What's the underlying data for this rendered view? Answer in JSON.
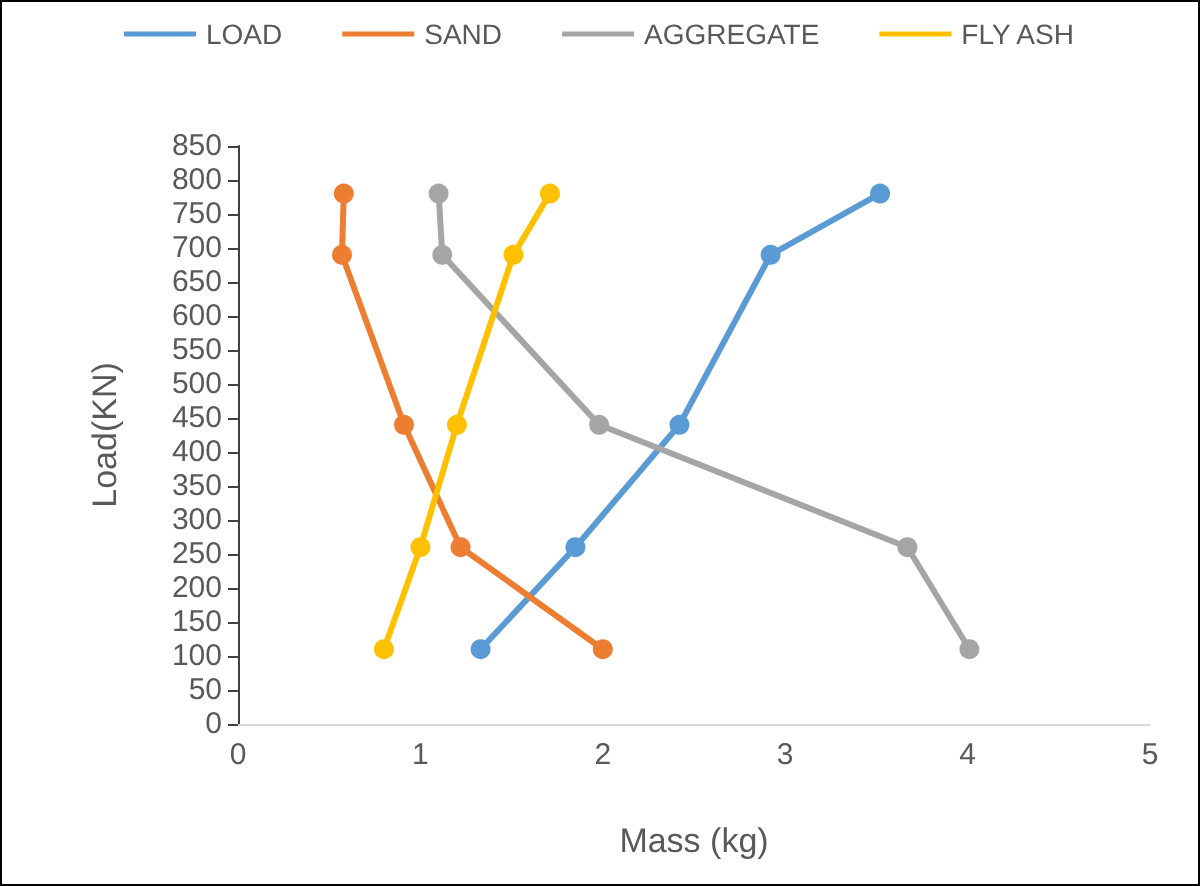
{
  "chart_data": {
    "type": "line",
    "xlabel": "Mass (kg)",
    "ylabel": "Load(KN)",
    "xlim": [
      0,
      5
    ],
    "xticks": [
      0,
      1,
      2,
      3,
      4,
      5
    ],
    "ylim": [
      0,
      850
    ],
    "yticks": [
      0,
      50,
      100,
      150,
      200,
      250,
      300,
      350,
      400,
      450,
      500,
      550,
      600,
      650,
      700,
      750,
      800,
      850
    ],
    "grid": false,
    "legend": "top",
    "marker": "circle",
    "line_style": "solid",
    "series": [
      {
        "name": "LOAD",
        "color": "#5b9bd5",
        "x": [
          1.33,
          1.85,
          2.42,
          2.92,
          3.52
        ],
        "values": [
          110,
          260,
          440,
          690,
          780
        ]
      },
      {
        "name": "SAND",
        "color": "#ed7d31",
        "x": [
          2.0,
          1.22,
          0.91,
          0.57,
          0.58
        ],
        "values": [
          110,
          260,
          440,
          690,
          780
        ]
      },
      {
        "name": "AGGREGATE",
        "color": "#a5a5a5",
        "x": [
          4.01,
          3.67,
          1.98,
          1.12,
          1.1
        ],
        "values": [
          110,
          260,
          440,
          690,
          780
        ]
      },
      {
        "name": "FLY ASH",
        "color": "#ffc000",
        "x": [
          0.8,
          1.0,
          1.2,
          1.51,
          1.71
        ],
        "values": [
          110,
          260,
          440,
          690,
          780
        ]
      }
    ]
  }
}
